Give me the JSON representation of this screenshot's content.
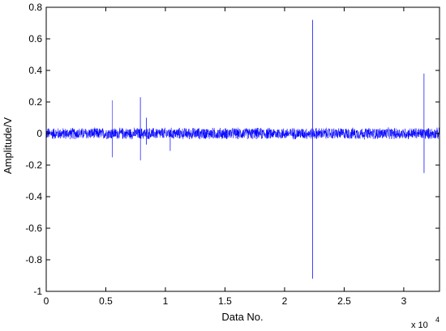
{
  "chart_data": {
    "type": "line",
    "title": "",
    "xlabel": "Data No.",
    "ylabel": "Amplitude/V",
    "x_exponent_label": "x 10",
    "x_exponent_power": "4",
    "xlim": [
      0,
      3.3
    ],
    "ylim": [
      -1.0,
      0.8
    ],
    "x_ticks": [
      0,
      0.5,
      1,
      1.5,
      2,
      2.5,
      3
    ],
    "x_tick_labels": [
      "0",
      "0.5",
      "1",
      "1.5",
      "2",
      "2.5",
      "3"
    ],
    "y_ticks": [
      0.8,
      0.6,
      0.4,
      0.2,
      0,
      -0.2,
      -0.4,
      -0.6,
      -0.8,
      -1
    ],
    "y_tick_labels": [
      "0.8",
      "0.6",
      "0.4",
      "0.2",
      "0",
      "-0.2",
      "-0.4",
      "-0.6",
      "-0.8",
      "-1"
    ],
    "grid": false,
    "series_color": "#0000ff",
    "noise_amplitude": 0.04,
    "spikes": [
      {
        "x": 0.553,
        "max": 0.21,
        "min": -0.15
      },
      {
        "x": 0.79,
        "max": 0.23,
        "min": -0.17
      },
      {
        "x": 0.84,
        "max": 0.1,
        "min": -0.07
      },
      {
        "x": 1.04,
        "max": 0.02,
        "min": -0.11
      },
      {
        "x": 2.235,
        "max": 0.72,
        "min": -0.92
      },
      {
        "x": 3.17,
        "max": 0.38,
        "min": -0.25
      }
    ]
  }
}
